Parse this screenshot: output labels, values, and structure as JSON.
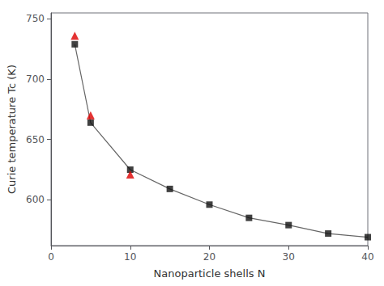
{
  "chart_data": {
    "type": "line",
    "xlabel": "Nanoparticle shells N",
    "ylabel": "Curie temperature Tc (K)",
    "xlim": [
      0,
      40
    ],
    "xticks": [
      0,
      10,
      20,
      30,
      40
    ],
    "ylim": [
      562,
      755
    ],
    "yticks": [
      600,
      650,
      700,
      750
    ],
    "grid": false,
    "series": [
      {
        "type": "line",
        "color": "#666666",
        "line_style": "solid",
        "x": [
          3,
          5,
          10,
          15,
          20,
          25,
          30,
          35,
          40
        ],
        "values": [
          729,
          664,
          625,
          609,
          596,
          585,
          579,
          572,
          569
        ]
      },
      {
        "type": "scatter",
        "color": "#111111",
        "marker": "square",
        "x": [
          3,
          5,
          10,
          15,
          20,
          25,
          30,
          35,
          40
        ],
        "values": [
          729,
          664,
          625,
          609,
          596,
          585,
          579,
          572,
          569
        ]
      },
      {
        "type": "scatter",
        "color": "#dd0000",
        "marker": "triangle",
        "x": [
          3,
          5,
          10
        ],
        "values": [
          736,
          670,
          621
        ]
      }
    ]
  }
}
